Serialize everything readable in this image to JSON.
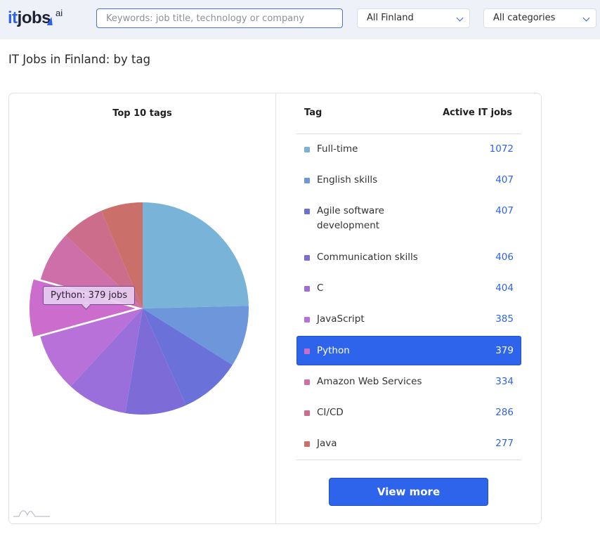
{
  "header": {
    "logo": {
      "it": "it",
      "jobs": "jobs",
      "ai": "ai"
    },
    "search_placeholder": "Keywords: job title, technology or company",
    "region_select": "All Finland",
    "category_select": "All categories"
  },
  "page_title": "IT Jobs in Finland: by tag",
  "chart": {
    "tooltip": "Python: 379 jobs"
  },
  "table": {
    "col_tag": "Tag",
    "col_jobs": "Active IT jobs",
    "view_more": "View more"
  },
  "chart_data": {
    "type": "pie",
    "title": "Top 10 tags",
    "categories": [
      "Full-time",
      "English skills",
      "Agile software development",
      "Communication skills",
      "C",
      "JavaScript",
      "Python",
      "Amazon Web Services",
      "CI/CD",
      "Java"
    ],
    "values": [
      1072,
      407,
      407,
      406,
      404,
      385,
      379,
      334,
      286,
      277
    ],
    "colors": [
      "#7ab3d8",
      "#6e96db",
      "#6a72d9",
      "#7d6bd8",
      "#9a6fdb",
      "#b771d9",
      "#cc6ccc",
      "#cf6fa9",
      "#cd6d8c",
      "#cb6f6a"
    ],
    "highlighted": "Python"
  }
}
